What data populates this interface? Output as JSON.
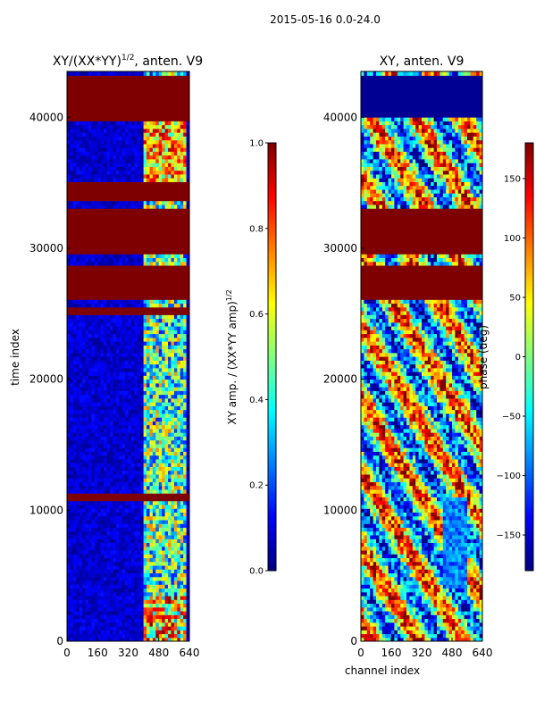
{
  "figure": {
    "suptitle": "2015-05-16 0.0-24.0",
    "colors": {
      "jet_scale": [
        "#00007f",
        "#0000ff",
        "#007fff",
        "#00ffff",
        "#7fff7f",
        "#ffff00",
        "#ff7f00",
        "#ff0000",
        "#7f0000"
      ]
    }
  },
  "chart_data": [
    {
      "type": "heatmap",
      "title_main": "XY/(XX*YY)",
      "title_sup": "1/2",
      "title_tail": ", anten. V9",
      "ylabel": "time index",
      "xlim": [
        0,
        640
      ],
      "ylim": [
        0,
        43500
      ],
      "x_ticks": [
        0,
        160,
        320,
        480,
        640
      ],
      "y_ticks": [
        0,
        10000,
        20000,
        30000,
        40000
      ],
      "colorbar": {
        "label_main": "XY amp. / (XX*YY amp)",
        "label_sup": "1/2",
        "range": [
          0.0,
          1.0
        ],
        "ticks": [
          "0.0",
          "0.2",
          "0.4",
          "0.6",
          "0.8",
          "1.0"
        ]
      },
      "saturated_bands_time": [
        [
          39800,
          43200
        ],
        [
          33700,
          35000
        ],
        [
          29700,
          33200
        ],
        [
          26000,
          28800
        ],
        [
          24800,
          25600
        ],
        [
          10800,
          11400
        ]
      ],
      "active_channel_range": [
        390,
        620
      ]
    },
    {
      "type": "heatmap",
      "title": "XY, anten. V9",
      "xlabel": "channel index",
      "xlim": [
        0,
        640
      ],
      "ylim": [
        0,
        43500
      ],
      "x_ticks": [
        0,
        160,
        320,
        480,
        640
      ],
      "y_ticks": [
        0,
        10000,
        20000,
        30000,
        40000
      ],
      "colorbar": {
        "label": "phase (deg)",
        "range": [
          -180,
          180
        ],
        "ticks": [
          "150",
          "100",
          "50",
          "0",
          "−50",
          "−100",
          "−150"
        ]
      },
      "saturated_bands_time": [
        [
          26000,
          28800
        ],
        [
          29700,
          33200
        ]
      ],
      "flat_band_time": [
        40000,
        43200
      ]
    }
  ]
}
